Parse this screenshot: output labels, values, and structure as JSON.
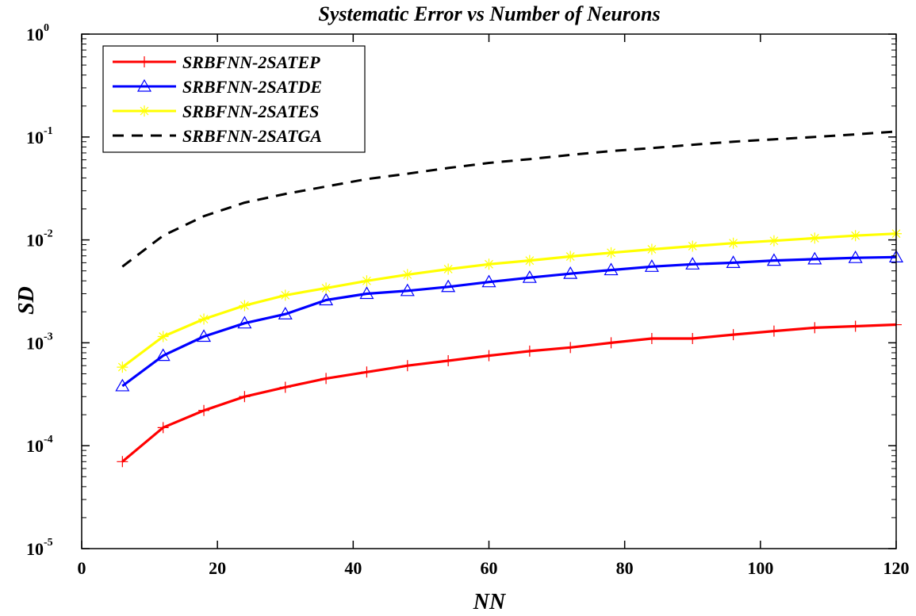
{
  "chart_data": {
    "type": "line",
    "title": "Systematic Error vs Number of Neurons",
    "xlabel": "NN",
    "ylabel": "SD",
    "xlim": [
      0,
      120
    ],
    "ylim_exponents": [
      -5,
      0
    ],
    "yscale": "log",
    "xticks": [
      "0",
      "20",
      "40",
      "60",
      "80",
      "100",
      "120"
    ],
    "yticks": [
      {
        "base": "10",
        "exp": "-5"
      },
      {
        "base": "10",
        "exp": "-4"
      },
      {
        "base": "10",
        "exp": "-3"
      },
      {
        "base": "10",
        "exp": "-2"
      },
      {
        "base": "10",
        "exp": "-1"
      },
      {
        "base": "10",
        "exp": "0"
      }
    ],
    "legend_position": "top-left",
    "x": [
      6,
      12,
      18,
      24,
      30,
      36,
      42,
      48,
      54,
      60,
      66,
      72,
      78,
      84,
      90,
      96,
      102,
      108,
      114,
      120
    ],
    "series": [
      {
        "name": "SRBFNN-2SATEP",
        "color": "#ff0000",
        "style": "solid",
        "marker": "plus",
        "values": [
          7e-05,
          0.00015,
          0.00022,
          0.0003,
          0.00037,
          0.00045,
          0.00052,
          0.0006,
          0.00067,
          0.00075,
          0.00083,
          0.0009,
          0.001,
          0.0011,
          0.0011,
          0.0012,
          0.0013,
          0.0014,
          0.00145,
          0.0015
        ]
      },
      {
        "name": "SRBFNN-2SATDE",
        "color": "#0000ff",
        "style": "solid",
        "marker": "triangle",
        "values": [
          0.00038,
          0.00075,
          0.00115,
          0.00155,
          0.0019,
          0.0026,
          0.003,
          0.0032,
          0.0035,
          0.0039,
          0.0043,
          0.0047,
          0.0051,
          0.0055,
          0.0058,
          0.006,
          0.0063,
          0.0065,
          0.0067,
          0.0068
        ]
      },
      {
        "name": "SRBFNN-2SATES",
        "color": "#ffff00",
        "style": "solid",
        "marker": "star",
        "values": [
          0.00058,
          0.00115,
          0.0017,
          0.0023,
          0.0029,
          0.0034,
          0.004,
          0.0046,
          0.0052,
          0.0058,
          0.0063,
          0.0069,
          0.0075,
          0.0081,
          0.0087,
          0.0093,
          0.0098,
          0.0104,
          0.011,
          0.0115
        ]
      },
      {
        "name": "SRBFNN-2SATGA",
        "color": "#000000",
        "style": "dashed",
        "marker": "none",
        "values": [
          0.0055,
          0.011,
          0.017,
          0.023,
          0.028,
          0.033,
          0.039,
          0.044,
          0.05,
          0.056,
          0.061,
          0.067,
          0.073,
          0.078,
          0.084,
          0.09,
          0.095,
          0.1,
          0.106,
          0.113
        ]
      }
    ]
  }
}
